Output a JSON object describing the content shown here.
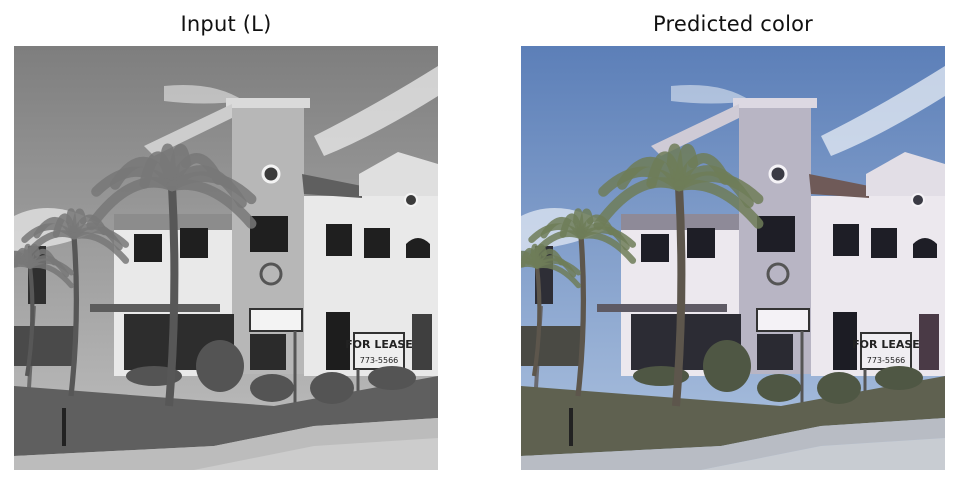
{
  "panels": [
    {
      "title": "Input (L)",
      "mode": "grayscale"
    },
    {
      "title": "Predicted color",
      "mode": "color"
    }
  ],
  "scene": {
    "sign_for_lease": "FOR LEASE",
    "sign_phone": "773-5566",
    "palette": {
      "sky": "#5c7fb8",
      "sky_light": "#aec3e0",
      "wall": "#ece8ee",
      "trim": "#b8b5c4",
      "roof": "#6f5a58",
      "window": "#1e1e26",
      "palm": "#6f7d58",
      "grass": "#5f6150",
      "shrub": "#4f5744",
      "sidewalk": "#b8bcc4",
      "street": "#c8ccd2"
    }
  }
}
